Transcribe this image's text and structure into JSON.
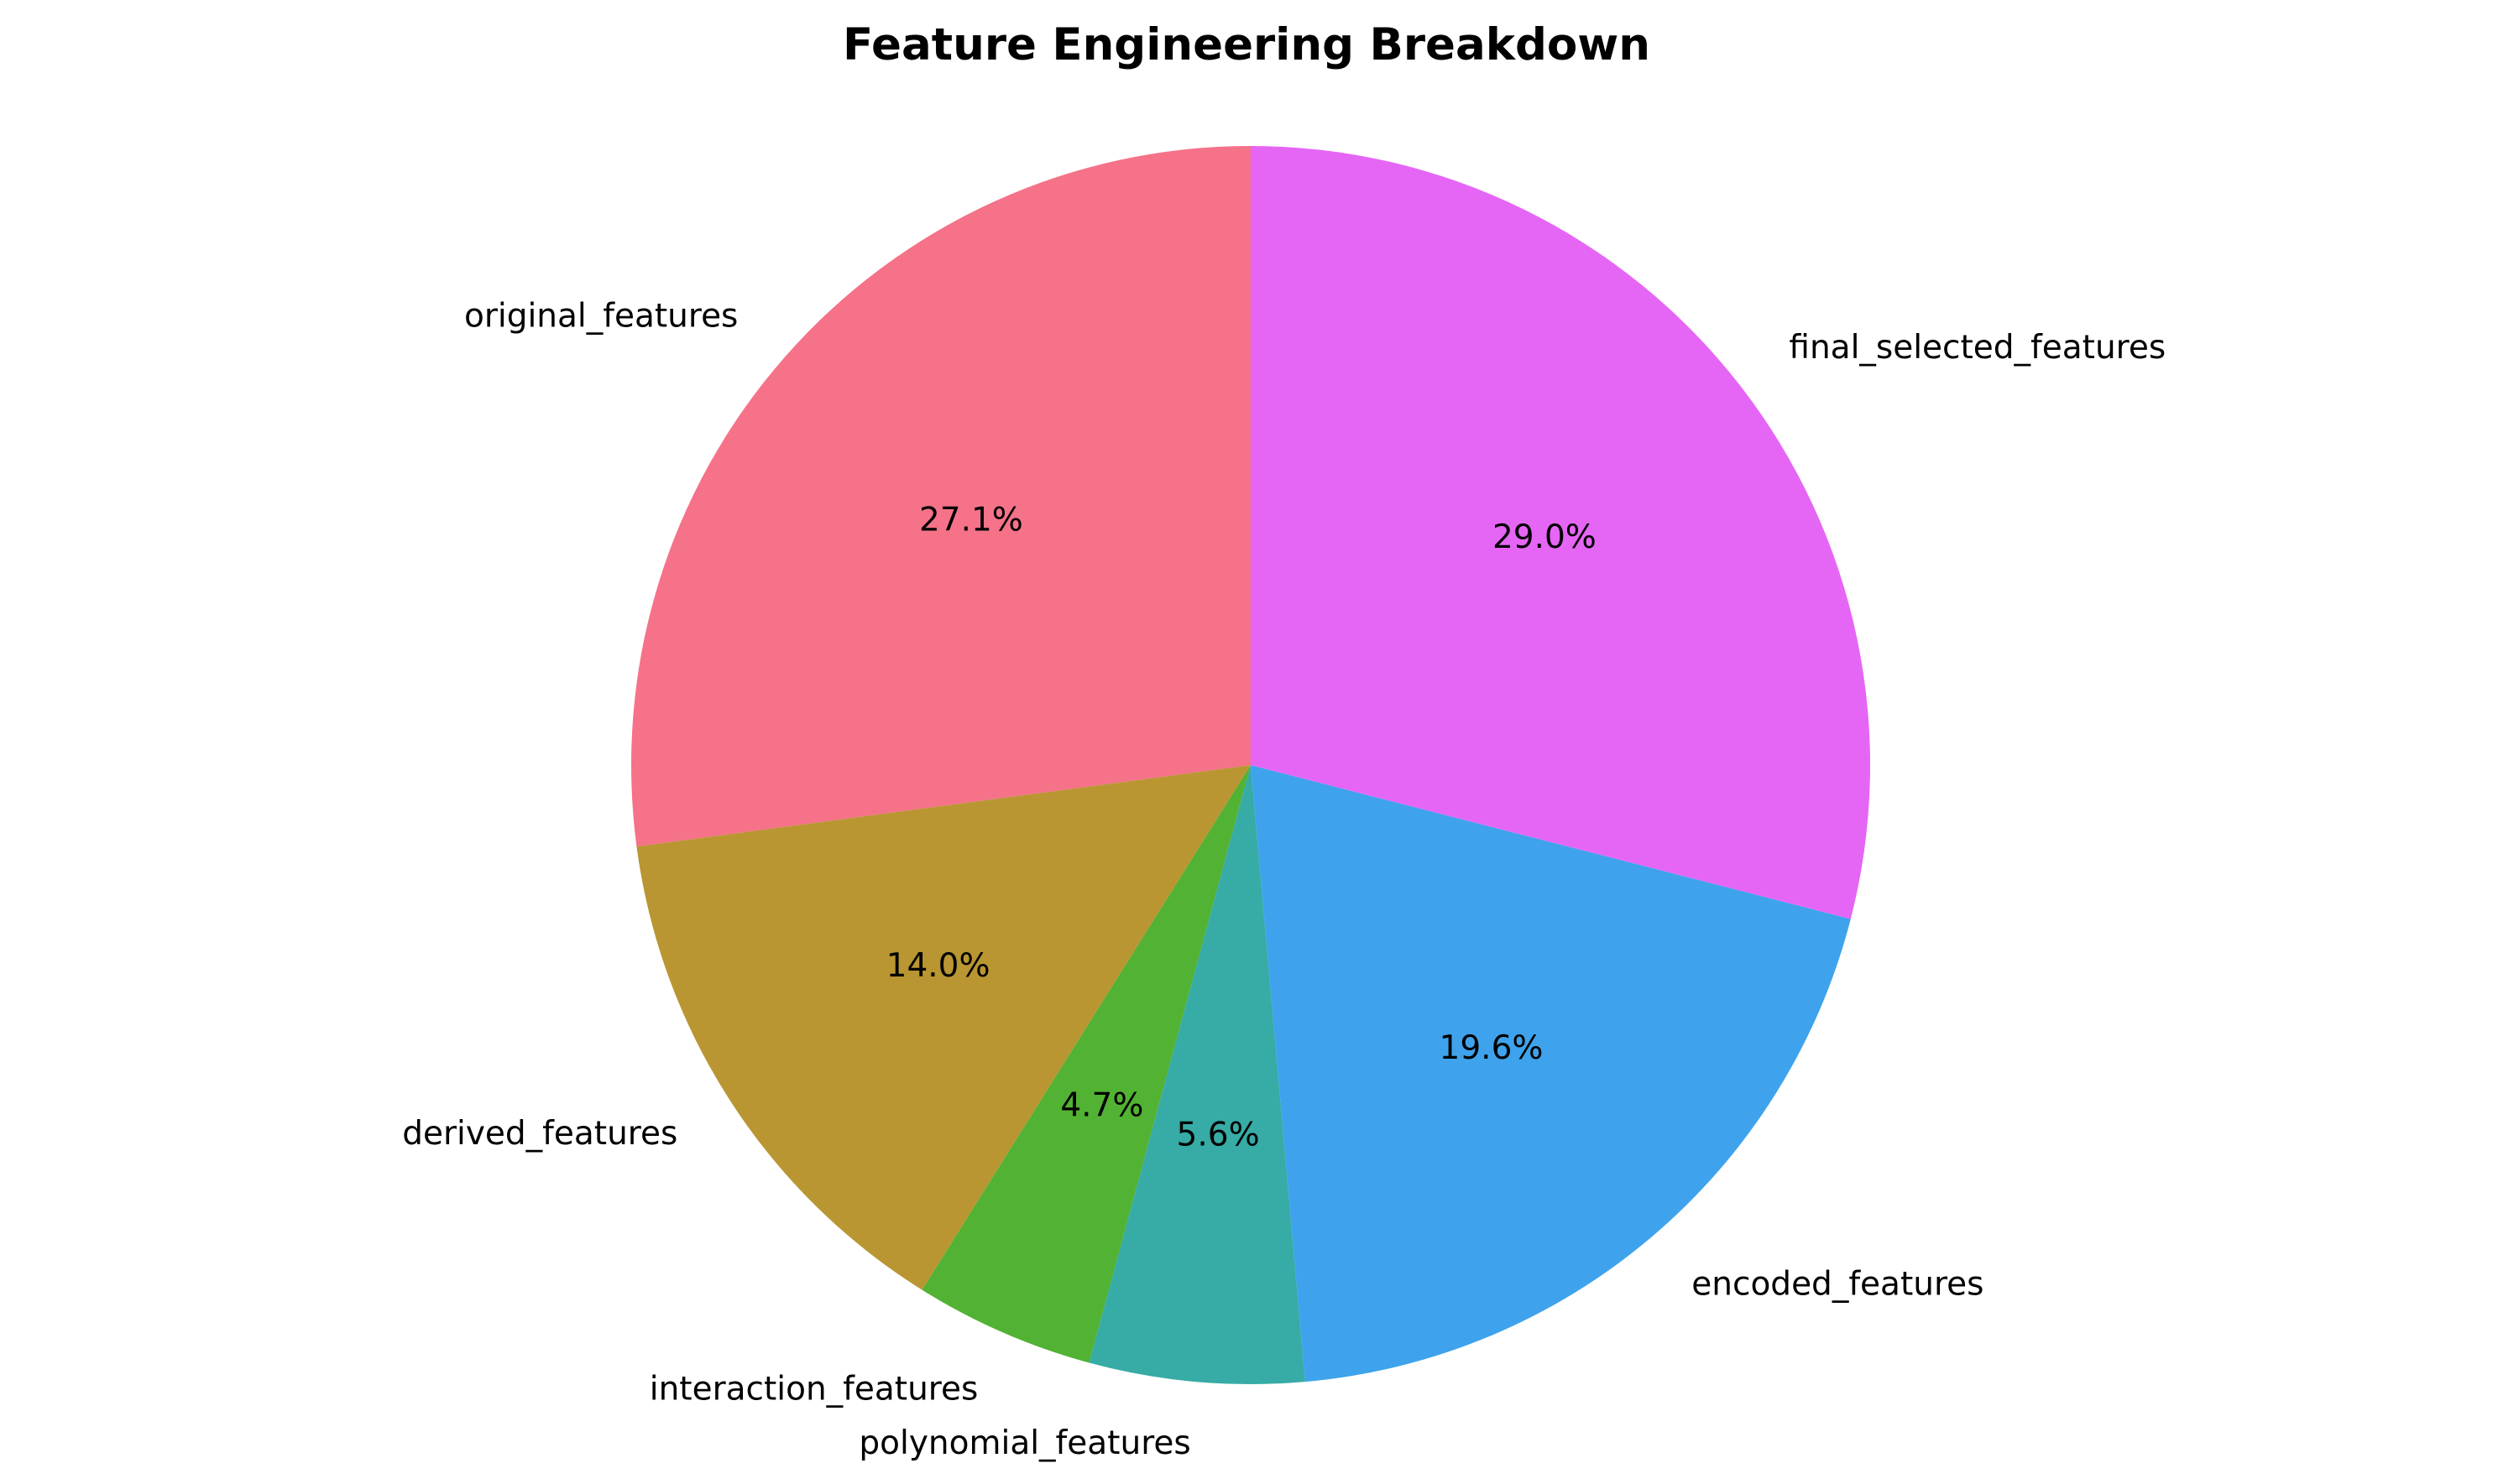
{
  "chart_data": {
    "type": "pie",
    "title": "Feature Engineering Breakdown",
    "start_angle_deg": 90,
    "direction": "counterclockwise",
    "slices": [
      {
        "label": "original_features",
        "value": 27.1,
        "pct_label": "27.1%",
        "color": "#f57288"
      },
      {
        "label": "derived_features",
        "value": 14.0,
        "pct_label": "14.0%",
        "color": "#b99632"
      },
      {
        "label": "interaction_features",
        "value": 4.7,
        "pct_label": "4.7%",
        "color": "#52b233"
      },
      {
        "label": "polynomial_features",
        "value": 5.6,
        "pct_label": "5.6%",
        "color": "#37aba5"
      },
      {
        "label": "encoded_features",
        "value": 19.6,
        "pct_label": "19.6%",
        "color": "#3ea3ec"
      },
      {
        "label": "final_selected_features",
        "value": 29.0,
        "pct_label": "29.0%",
        "color": "#e566f5"
      }
    ]
  }
}
